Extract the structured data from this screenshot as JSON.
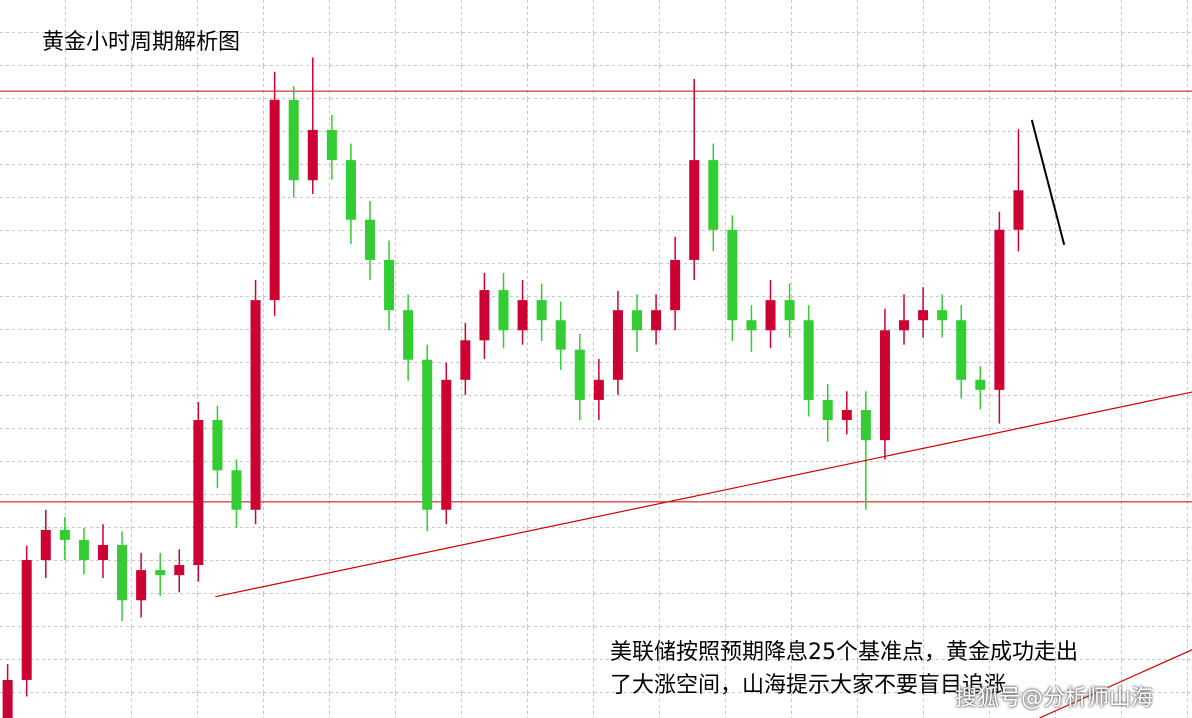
{
  "chart_data": {
    "type": "candlestick",
    "title": "黄金小时周期解析图",
    "annotation": [
      "美联储按照预期降息25个基准点，黄金成功走出",
      "了大涨空间，山海提示大家不要盲目追涨"
    ],
    "watermark": "搜狐号@分析师山海",
    "up_color": "#cc0033",
    "down_color": "#33cc33",
    "ylim": [
      2600,
      2700
    ],
    "xlim": [
      -0.4,
      62.1
    ],
    "open": [
      2600.0,
      2605.3,
      2622.0,
      2626.2,
      2624.8,
      2622.0,
      2624.1,
      2616.4,
      2620.6,
      2619.9,
      2621.3,
      2641.5,
      2634.5,
      2629.0,
      2658.2,
      2686.1,
      2674.9,
      2681.9,
      2677.7,
      2669.4,
      2663.8,
      2656.8,
      2649.9,
      2629.0,
      2647.1,
      2652.6,
      2659.6,
      2654.0,
      2658.2,
      2655.4,
      2651.3,
      2644.3,
      2647.1,
      2656.8,
      2654.0,
      2656.8,
      2663.8,
      2677.7,
      2668.0,
      2655.4,
      2654.0,
      2658.2,
      2655.4,
      2644.3,
      2641.5,
      2642.9,
      2638.7,
      2654.0,
      2655.4,
      2656.8,
      2655.4,
      2647.1,
      2645.7,
      2668.0
    ],
    "close": [
      2605.3,
      2622.0,
      2626.2,
      2624.8,
      2622.0,
      2624.1,
      2616.4,
      2620.6,
      2619.9,
      2621.3,
      2641.5,
      2634.5,
      2629.0,
      2658.2,
      2686.1,
      2674.9,
      2681.9,
      2677.7,
      2669.4,
      2663.8,
      2656.8,
      2649.9,
      2629.0,
      2647.1,
      2652.6,
      2659.6,
      2654.0,
      2658.2,
      2655.4,
      2651.3,
      2644.3,
      2647.1,
      2656.8,
      2654.0,
      2656.8,
      2663.8,
      2677.7,
      2668.0,
      2655.4,
      2654.0,
      2658.2,
      2655.4,
      2644.3,
      2641.5,
      2642.9,
      2638.7,
      2654.0,
      2655.4,
      2656.8,
      2655.4,
      2647.1,
      2645.7,
      2668.0,
      2673.5
    ],
    "high": [
      2607.5,
      2624.0,
      2629.0,
      2628.0,
      2626.5,
      2627.0,
      2626.0,
      2623.0,
      2623.0,
      2623.5,
      2644.0,
      2643.5,
      2636.0,
      2661.0,
      2690.0,
      2688.0,
      2692.0,
      2684.0,
      2680.0,
      2672.0,
      2666.5,
      2659.0,
      2652.0,
      2649.5,
      2655.0,
      2662.0,
      2662.0,
      2661.0,
      2660.5,
      2658.0,
      2653.5,
      2650.0,
      2659.5,
      2659.0,
      2659.0,
      2667.0,
      2689.0,
      2680.0,
      2670.0,
      2657.5,
      2661.0,
      2660.5,
      2657.5,
      2646.5,
      2645.5,
      2645.5,
      2657.0,
      2659.0,
      2660.0,
      2659.0,
      2657.5,
      2649.0,
      2670.5,
      2682.0
    ],
    "low": [
      2598.0,
      2603.0,
      2619.5,
      2622.0,
      2620.0,
      2619.5,
      2613.5,
      2614.0,
      2617.0,
      2617.5,
      2619.0,
      2632.0,
      2626.5,
      2627.0,
      2656.0,
      2672.5,
      2673.0,
      2675.0,
      2666.0,
      2661.0,
      2654.0,
      2647.0,
      2626.0,
      2627.0,
      2645.0,
      2650.0,
      2651.5,
      2652.0,
      2652.5,
      2648.5,
      2641.5,
      2641.5,
      2645.0,
      2651.0,
      2652.0,
      2654.0,
      2661.0,
      2665.0,
      2652.5,
      2651.0,
      2651.5,
      2653.0,
      2642.0,
      2638.5,
      2639.5,
      2629.0,
      2636.0,
      2652.0,
      2653.0,
      2653.0,
      2644.5,
      2643.0,
      2641.0,
      2665.0
    ],
    "levels": [
      2687.3,
      2630.1
    ],
    "level_color": "#cc0000",
    "lines": [
      {
        "x": [
          10.9,
          62.1
        ],
        "y": [
          2616.9,
          2645.4
        ],
        "color": "#cc0000"
      },
      {
        "x": [
          54.1,
          62.1
        ],
        "y": [
          2600.0,
          2609.5
        ],
        "color": "#cc0000"
      },
      {
        "x": [
          53.7,
          55.4
        ],
        "y": [
          2683.3,
          2665.9
        ],
        "color": "#000000"
      }
    ]
  }
}
